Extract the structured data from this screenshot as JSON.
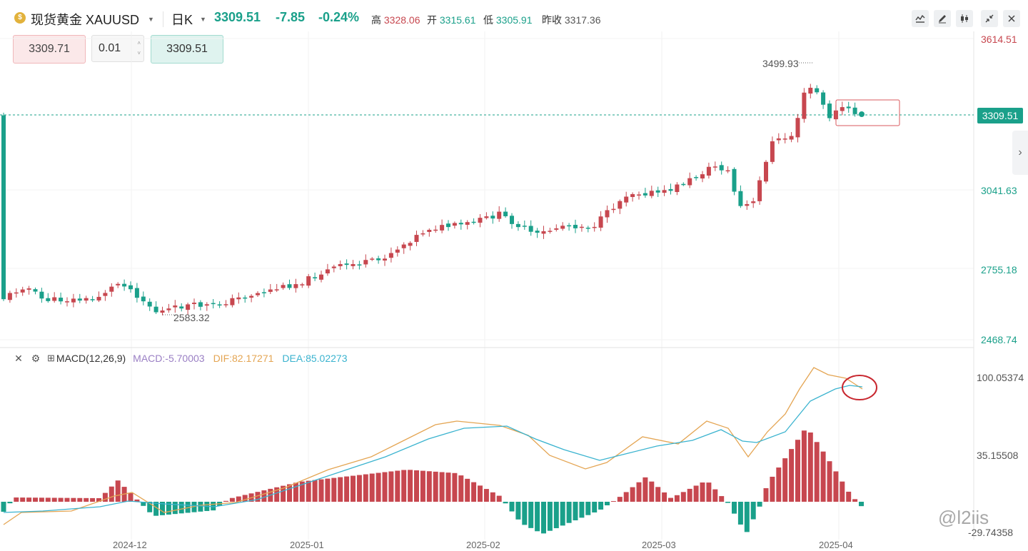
{
  "header": {
    "symbol_icon": "gold-coin-icon",
    "symbol_icon_text": "$",
    "symbol_name": "现货黄金 XAUUSD",
    "period": "日K",
    "price": "3309.51",
    "change": "-7.85",
    "change_pct": "-0.24%",
    "high_label": "高",
    "high": "3328.06",
    "open_label": "开",
    "open": "3315.61",
    "low_label": "低",
    "low": "3305.91",
    "prev_close_label": "昨收",
    "prev_close": "3317.36"
  },
  "toolbar": {
    "icons": [
      "indicator-icon",
      "draw-pen-icon",
      "candle-type-icon",
      "collapse-icon",
      "close-icon"
    ]
  },
  "trade": {
    "sell_price": "3309.71",
    "quantity": "0.01",
    "buy_price": "3309.51"
  },
  "price_axis": {
    "ticks": [
      "3614.51",
      "3041.63",
      "2755.18",
      "2468.74"
    ],
    "current_tag": "3309.51"
  },
  "annotations": {
    "high_mark": "3499.93",
    "low_mark": "2583.32"
  },
  "macd": {
    "title": "MACD(12,26,9)",
    "macd_text": "MACD:-5.70003",
    "dif_text": "DIF:82.17271",
    "dea_text": "DEA:85.02273",
    "ticks": [
      "100.05374",
      "35.15508",
      "-29.74358"
    ],
    "icons": [
      "close-icon",
      "settings-icon",
      "add-indicator-icon"
    ]
  },
  "dates": [
    "2024-12",
    "2025-01",
    "2025-02",
    "2025-03",
    "2025-04"
  ],
  "watermark": "@l2iis",
  "colors": {
    "up": "#c7474f",
    "down": "#1aa08a",
    "dif_line": "#e4a553",
    "dea_line": "#3ab3cf",
    "macd_text": "#9a7fc4"
  }
}
